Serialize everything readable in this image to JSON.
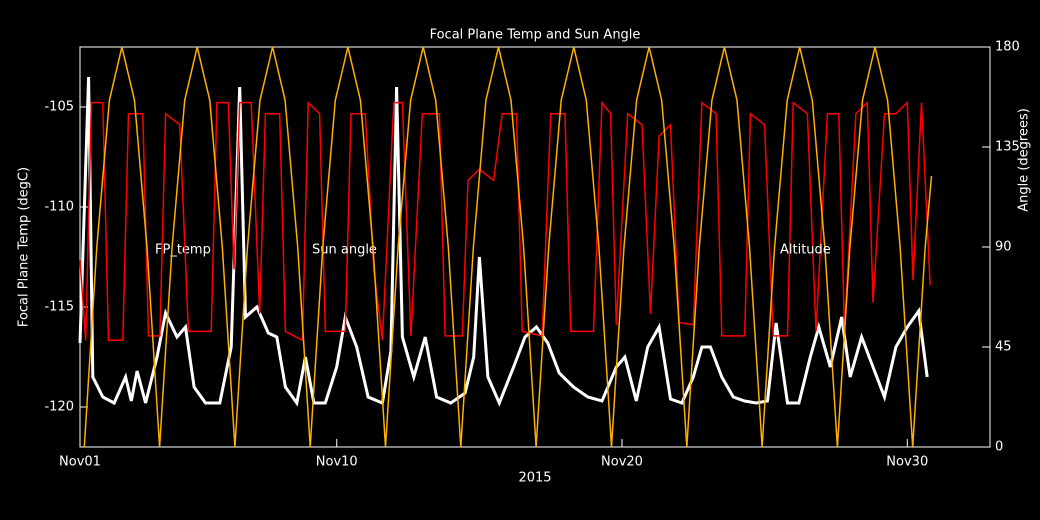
{
  "chart_data": {
    "type": "line",
    "title": "Focal Plane Temp and Sun Angle",
    "x_label": "2015",
    "y_label": "Focal Plane Temp (degC)",
    "y2_label": "Angle (degrees)",
    "xlim": [
      1,
      32.9
    ],
    "xticks": [
      {
        "value": 1,
        "label": "Nov01"
      },
      {
        "value": 10,
        "label": "Nov10"
      },
      {
        "value": 20,
        "label": "Nov20"
      },
      {
        "value": 30,
        "label": "Nov30"
      }
    ],
    "ylim": [
      -122,
      -102
    ],
    "yticks": [
      -120,
      -115,
      -110,
      -105
    ],
    "y2lim": [
      0,
      180
    ],
    "y2ticks": [
      0,
      45,
      90,
      135,
      180
    ],
    "series": [
      {
        "name": "FP_temp",
        "color": "#ffffff",
        "x": [
          1.0,
          1.3,
          1.45,
          1.8,
          2.2,
          2.6,
          2.8,
          3.0,
          3.3,
          3.7,
          4.0,
          4.4,
          4.7,
          5.0,
          5.4,
          5.9,
          6.3,
          6.6,
          6.8,
          7.2,
          7.6,
          7.9,
          8.2,
          8.6,
          8.9,
          9.2,
          9.6,
          10.0,
          10.3,
          10.7,
          11.1,
          11.6,
          11.9,
          12.1,
          12.3,
          12.7,
          13.1,
          13.5,
          14.0,
          14.5,
          14.8,
          15.0,
          15.3,
          15.7,
          16.2,
          16.6,
          17.0,
          17.4,
          17.8,
          18.3,
          18.8,
          19.3,
          19.8,
          20.1,
          20.5,
          20.9,
          21.3,
          21.7,
          22.1,
          22.5,
          22.8,
          23.1,
          23.5,
          23.9,
          24.3,
          24.7,
          25.1,
          25.4,
          25.8,
          26.2,
          26.6,
          26.9,
          27.3,
          27.7,
          28.0,
          28.4,
          28.8,
          29.2,
          29.6,
          30.0,
          30.4,
          30.7
        ],
        "values": [
          -116.8,
          -103.5,
          -118.5,
          -119.5,
          -119.8,
          -118.5,
          -119.7,
          -118.2,
          -119.8,
          -117.5,
          -115.3,
          -116.5,
          -116.0,
          -119.0,
          -119.8,
          -119.8,
          -117.0,
          -104.0,
          -115.5,
          -115.0,
          -116.3,
          -116.5,
          -119.0,
          -119.8,
          -117.5,
          -119.8,
          -119.8,
          -118.0,
          -115.5,
          -117.0,
          -119.5,
          -119.8,
          -117.2,
          -104.0,
          -116.5,
          -118.5,
          -116.5,
          -119.5,
          -119.8,
          -119.3,
          -117.5,
          -112.5,
          -118.5,
          -119.8,
          -118.0,
          -116.5,
          -116.0,
          -116.8,
          -118.3,
          -119.0,
          -119.5,
          -119.7,
          -118.0,
          -117.5,
          -119.7,
          -117.0,
          -116.0,
          -119.6,
          -119.8,
          -118.5,
          -117.0,
          -117.0,
          -118.5,
          -119.5,
          -119.7,
          -119.8,
          -119.7,
          -115.8,
          -119.8,
          -119.8,
          -117.5,
          -116.0,
          -118.0,
          -115.5,
          -118.5,
          -116.5,
          -118.0,
          -119.5,
          -117.0,
          -116.0,
          -115.2,
          -118.5
        ]
      },
      {
        "name": "Sun angle",
        "color": "#ff0000",
        "axis": "y2",
        "x": [
          1.0,
          1.2,
          1.4,
          1.8,
          2.0,
          2.5,
          2.7,
          3.2,
          3.4,
          3.8,
          4.0,
          4.5,
          4.8,
          5.6,
          5.8,
          6.2,
          6.4,
          6.6,
          7.0,
          7.3,
          7.5,
          8.0,
          8.2,
          8.8,
          9.0,
          9.4,
          9.6,
          10.3,
          10.5,
          11.0,
          11.3,
          11.6,
          12.0,
          12.3,
          12.6,
          13.0,
          13.6,
          13.8,
          14.4,
          14.6,
          15.0,
          15.5,
          15.8,
          16.3,
          16.5,
          17.2,
          17.5,
          18.0,
          18.2,
          19.0,
          19.3,
          19.6,
          19.8,
          20.2,
          20.7,
          21.0,
          21.3,
          21.7,
          22.0,
          22.5,
          22.8,
          23.3,
          23.5,
          24.3,
          24.5,
          25.0,
          25.3,
          25.8,
          26.0,
          26.5,
          26.8,
          27.2,
          27.6,
          27.8,
          28.2,
          28.6,
          28.8,
          29.2,
          29.6,
          30.0,
          30.2,
          30.5,
          30.8
        ],
        "values": [
          84,
          48,
          155,
          155,
          48,
          48,
          150,
          150,
          50,
          50,
          150,
          145,
          52,
          52,
          155,
          155,
          80,
          155,
          155,
          60,
          150,
          150,
          52,
          48,
          155,
          150,
          52,
          52,
          150,
          150,
          80,
          48,
          155,
          155,
          50,
          150,
          150,
          50,
          50,
          120,
          125,
          120,
          150,
          150,
          52,
          50,
          150,
          150,
          52,
          52,
          155,
          150,
          55,
          150,
          145,
          60,
          140,
          145,
          56,
          55,
          155,
          150,
          50,
          50,
          150,
          145,
          50,
          50,
          155,
          150,
          52,
          150,
          150,
          52,
          150,
          155,
          65,
          150,
          150,
          155,
          75,
          155,
          73
        ]
      },
      {
        "name": "Altitude",
        "color": "#ffb000",
        "axis": "y2",
        "x": [
          1.15,
          1.59,
          2.03,
          2.47,
          2.91,
          3.35,
          3.79,
          4.23,
          4.67,
          5.11,
          5.55,
          5.99,
          6.43,
          6.87,
          7.31,
          7.75,
          8.19,
          8.63,
          9.07,
          9.51,
          9.95,
          10.39,
          10.83,
          11.27,
          11.71,
          12.15,
          12.59,
          13.03,
          13.47,
          13.91,
          14.35,
          14.79,
          15.23,
          15.67,
          16.11,
          16.55,
          16.99,
          17.43,
          17.87,
          18.31,
          18.75,
          19.19,
          19.63,
          20.07,
          20.51,
          20.95,
          21.39,
          21.83,
          22.27,
          22.71,
          23.15,
          23.59,
          24.03,
          24.47,
          24.91,
          25.35,
          25.79,
          26.23,
          26.67,
          27.11,
          27.55,
          27.99,
          28.43,
          28.87,
          29.31,
          29.75,
          30.19,
          30.63,
          30.85
        ],
        "values": [
          0,
          90,
          156,
          180,
          156,
          90,
          0,
          90,
          156,
          180,
          156,
          90,
          0,
          90,
          156,
          180,
          156,
          90,
          0,
          90,
          156,
          180,
          156,
          90,
          0,
          90,
          156,
          180,
          156,
          90,
          0,
          90,
          156,
          180,
          156,
          90,
          0,
          90,
          156,
          180,
          156,
          90,
          0,
          90,
          156,
          180,
          156,
          90,
          0,
          90,
          156,
          180,
          156,
          90,
          0,
          90,
          156,
          180,
          156,
          90,
          0,
          90,
          156,
          180,
          156,
          90,
          0,
          90,
          122
        ]
      }
    ]
  }
}
